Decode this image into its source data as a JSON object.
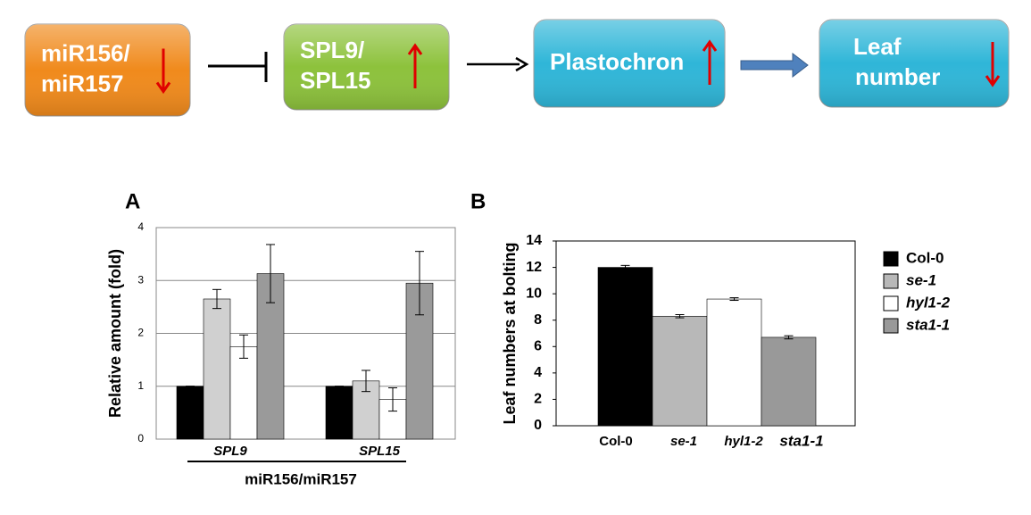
{
  "diagram": {
    "nodes": [
      {
        "lines": [
          "miR156/",
          "miR157"
        ],
        "color": "#f08a1c"
      },
      {
        "lines": [
          "SPL9/",
          "SPL15"
        ],
        "color": "#8dc23c"
      },
      {
        "lines": [
          "Plastochron"
        ],
        "color": "#2fb6d8"
      },
      {
        "lines": [
          "Leaf",
          "number"
        ],
        "color": "#2fb6d8"
      }
    ]
  },
  "chart_data": [
    {
      "type": "bar",
      "panel": "A",
      "ylabel": "Relative amount (fold)",
      "xlabel": "miR156/miR157",
      "categories": [
        "SPL9",
        "SPL15"
      ],
      "ylim": [
        0,
        4
      ],
      "yticks": [
        0,
        1,
        2,
        3,
        4
      ],
      "grid": true,
      "series": [
        {
          "color": "#000000",
          "values": [
            1,
            1
          ],
          "errors": [
            0,
            0
          ]
        },
        {
          "color": "#d0d0d0",
          "values": [
            2.65,
            1.1
          ],
          "errors": [
            0.18,
            0.2
          ]
        },
        {
          "color": "#ffffff",
          "values": [
            1.75,
            0.75
          ],
          "errors": [
            0.22,
            0.22
          ]
        },
        {
          "color": "#9a9a9a",
          "values": [
            3.13,
            2.95
          ],
          "errors": [
            0.55,
            0.6
          ]
        }
      ]
    },
    {
      "type": "bar",
      "panel": "B",
      "ylabel": "Leaf numbers at bolting",
      "categories": [
        "Col-0",
        "se-1",
        "hyl1-2",
        "sta1-1"
      ],
      "ylim": [
        0,
        14
      ],
      "yticks": [
        0,
        2,
        4,
        6,
        8,
        10,
        12,
        14
      ],
      "grid": false,
      "colors": [
        "#000000",
        "#b8b8b8",
        "#ffffff",
        "#999999"
      ],
      "values": [
        12,
        8.3,
        9.6,
        6.7
      ],
      "errors": [
        0.15,
        0.12,
        0.1,
        0.12
      ],
      "legend": [
        "Col-0",
        "se-1",
        "hyl1-2",
        "sta1-1"
      ]
    }
  ]
}
